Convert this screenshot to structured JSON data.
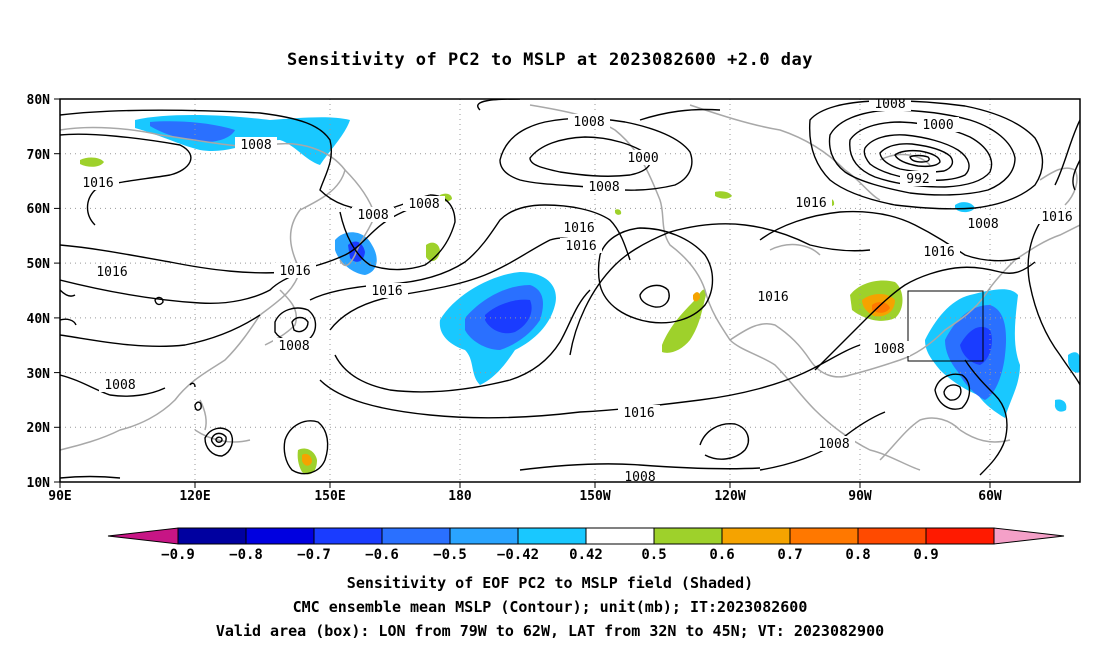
{
  "title": "Sensitivity of PC2 to MSLP at 2023082600 +2.0 day",
  "lat_labels": [
    "80N",
    "70N",
    "60N",
    "50N",
    "40N",
    "30N",
    "20N",
    "10N"
  ],
  "lon_labels": [
    "90E",
    "120E",
    "150E",
    "180",
    "150W",
    "120W",
    "90W",
    "60W"
  ],
  "colorbar": {
    "labels": [
      "−0.9",
      "−0.8",
      "−0.7",
      "−0.6",
      "−0.5",
      "−0.42",
      "0.42",
      "0.5",
      "0.6",
      "0.7",
      "0.8",
      "0.9"
    ],
    "colors": [
      "#0000a0",
      "#0000e0",
      "#1a3cff",
      "#2a70ff",
      "#2aa4ff",
      "#19c8ff",
      "#ffffff",
      "#9ed12b",
      "#f5a300",
      "#ff7800",
      "#ff4a00",
      "#ff1a00"
    ],
    "end_low_color": "#c71585",
    "end_high_color": "#f4a0c8"
  },
  "contour_labels": {
    "c1008_top": "1008",
    "c1000_top": "1000",
    "c1008_aleutian": "1008",
    "c1000_aleutian": "1000",
    "c1008_aleutian_b": "1008",
    "c1008_siberia": "1008",
    "c1016_west": "1016",
    "c1016_china": "1016",
    "c1016_china2": "1016",
    "c1008_japan": "1008",
    "c1008_sea": "1008",
    "c1008_kamchatka": "1008",
    "c1008_bering": "1008",
    "c1016_pac1": "1016",
    "c1016_pac2": "1016",
    "c1016_pac3": "1016",
    "c1016_pac4": "1016",
    "c1016_na": "1016",
    "c1016_canada": "1016",
    "c1016_atl": "1016",
    "c1016_ne": "1016",
    "c1008_greenland": "1008",
    "c992": "992",
    "c1008_gulf": "1008",
    "c1008_mex": "1008",
    "c1008_eqpac": "1008",
    "c1016_hawaii": "1016"
  },
  "caption": [
    "Sensitivity of EOF PC2 to MSLP field (Shaded)",
    "CMC ensemble mean MSLP (Contour); unit(mb); IT:2023082600",
    "Valid area (box): LON from 79W to 62W, LAT from 32N to 45N; VT: 2023082900"
  ],
  "valid_box": {
    "lon": [
      "79W",
      "62W"
    ],
    "lat": [
      "32N",
      "45N"
    ]
  }
}
